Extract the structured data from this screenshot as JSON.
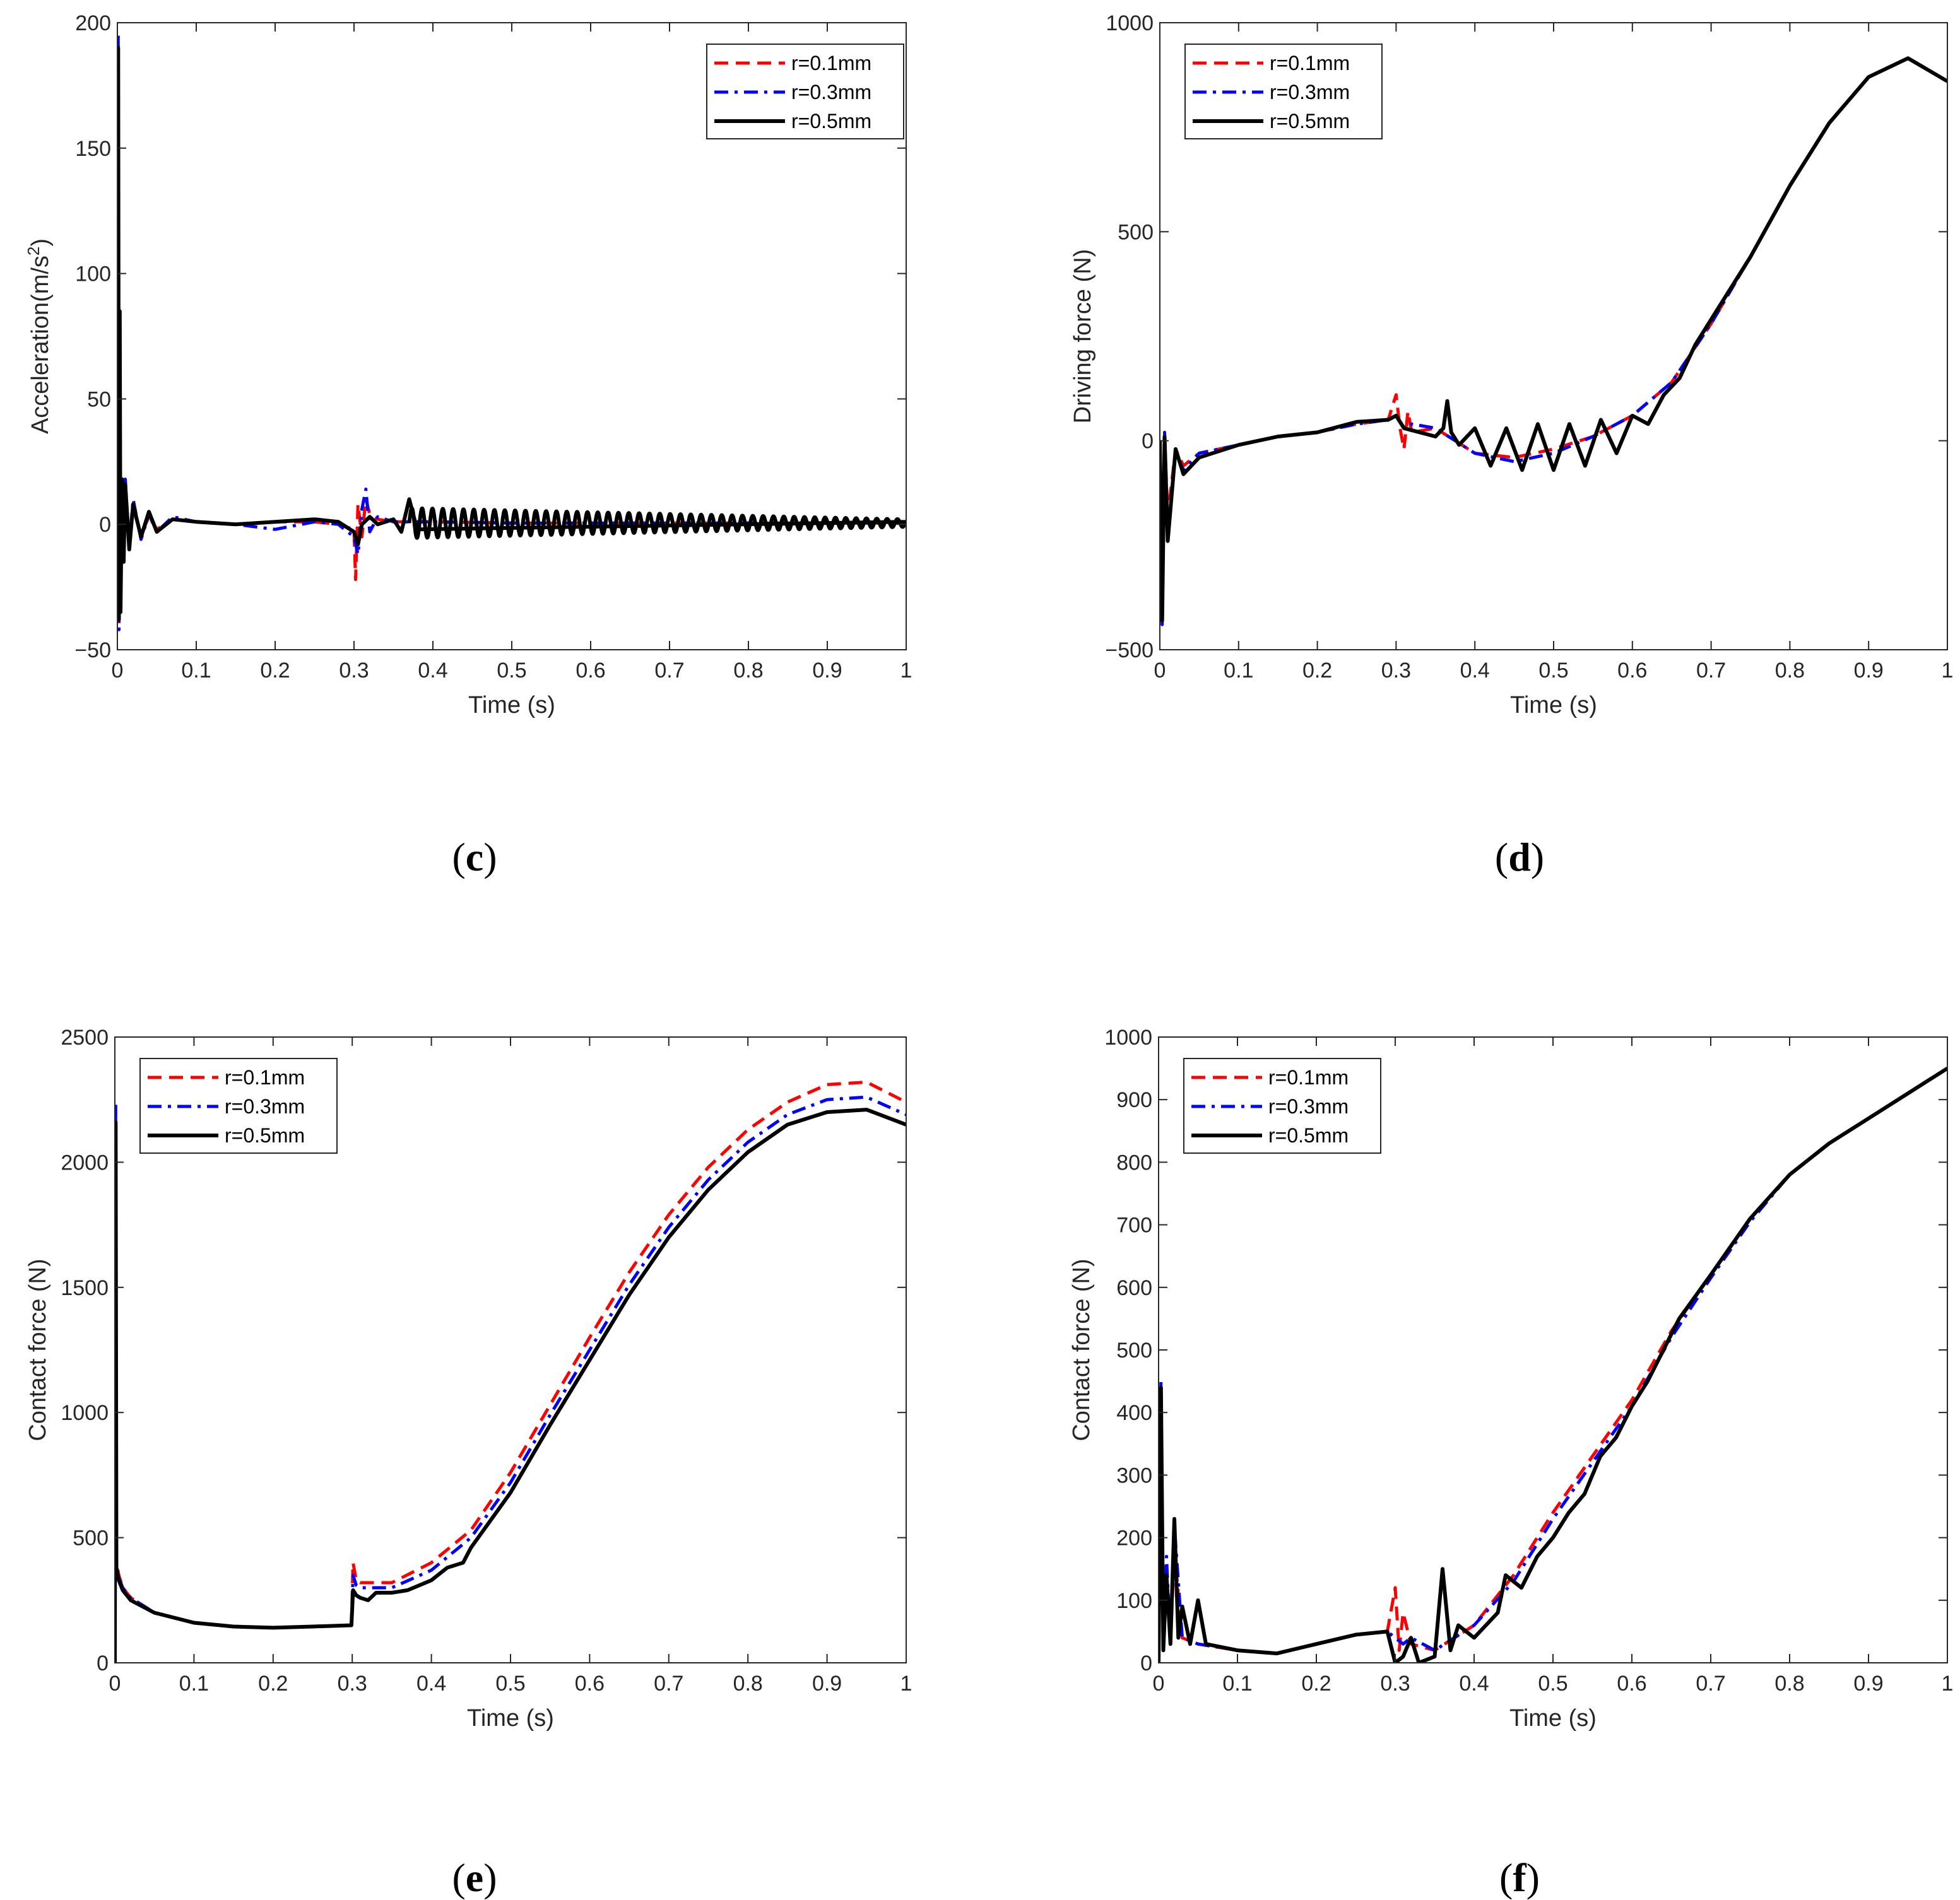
{
  "colors": {
    "r01": "#ff0000",
    "r03": "#0000ff",
    "r05": "#000000",
    "axis": "#262626"
  },
  "legend": {
    "entries": [
      {
        "key": "r01",
        "label": "r=0.1mm",
        "style": "dashed"
      },
      {
        "key": "r03",
        "label": "r=0.3mm",
        "style": "dashdot"
      },
      {
        "key": "r05",
        "label": "r=0.5mm",
        "style": "solid"
      }
    ]
  },
  "chart_data": [
    {
      "id": "c",
      "panel_label": "c",
      "type": "line",
      "xlabel": "Time (s)",
      "ylabel": "Acceleration(m/s",
      "ylabel_sup": "2",
      "ylabel_close": ")",
      "xlim": [
        0,
        1
      ],
      "ylim": [
        -50,
        200
      ],
      "xticks": [
        0,
        0.1,
        0.2,
        0.3,
        0.4,
        0.5,
        0.6,
        0.7,
        0.8,
        0.9,
        1
      ],
      "xtick_labels": [
        "0",
        "0.1",
        "0.2",
        "0.3",
        "0.4",
        "0.5",
        "0.6",
        "0.7",
        "0.8",
        "0.9",
        "1"
      ],
      "yticks": [
        -50,
        0,
        50,
        100,
        150,
        200
      ],
      "ytick_labels": [
        "−50",
        "0",
        "50",
        "100",
        "150",
        "200"
      ],
      "legend_position": "top-right",
      "series": [
        {
          "name": "r=0.1mm",
          "key": "r01",
          "x": [
            0,
            0.001,
            0.002,
            0.003,
            0.004,
            0.006,
            0.008,
            0.01,
            0.015,
            0.02,
            0.03,
            0.04,
            0.05,
            0.07,
            0.1,
            0.15,
            0.2,
            0.25,
            0.28,
            0.3,
            0.302,
            0.305,
            0.31,
            0.315,
            0.32,
            0.33,
            0.35,
            0.4,
            0.5,
            0.6,
            0.7,
            0.8,
            0.9,
            1.0
          ],
          "y": [
            0,
            60,
            -40,
            20,
            -35,
            8,
            -10,
            14,
            -5,
            6,
            -4,
            3,
            -2,
            2,
            1,
            0,
            1,
            1,
            0,
            -2,
            -22,
            8,
            -5,
            10,
            4,
            2,
            1,
            1,
            0.5,
            0.5,
            0.5,
            0.5,
            0.5,
            0.5
          ]
        },
        {
          "name": "r=0.3mm",
          "key": "r03",
          "x": [
            0,
            0.001,
            0.002,
            0.003,
            0.004,
            0.006,
            0.008,
            0.01,
            0.015,
            0.02,
            0.03,
            0.04,
            0.05,
            0.07,
            0.1,
            0.15,
            0.2,
            0.25,
            0.28,
            0.3,
            0.305,
            0.31,
            0.315,
            0.32,
            0.33,
            0.35,
            0.4,
            0.5,
            0.6,
            0.7,
            0.8,
            0.9,
            1.0
          ],
          "y": [
            0,
            196,
            -42,
            40,
            -30,
            15,
            -12,
            18,
            -8,
            10,
            -6,
            4,
            -3,
            3,
            1,
            0,
            -2,
            1,
            0,
            -5,
            -12,
            6,
            14,
            -3,
            3,
            1,
            1,
            0.5,
            0.5,
            0.5,
            0.5,
            0.5,
            0.5
          ]
        },
        {
          "name": "r=0.5mm",
          "key": "r05",
          "x": [
            0,
            0.001,
            0.002,
            0.003,
            0.004,
            0.006,
            0.008,
            0.01,
            0.015,
            0.02,
            0.03,
            0.04,
            0.05,
            0.07,
            0.1,
            0.15,
            0.2,
            0.25,
            0.28,
            0.3,
            0.305,
            0.31,
            0.32,
            0.33,
            0.35,
            0.36,
            0.37,
            0.38,
            1.0
          ],
          "y": [
            0,
            190,
            -38,
            85,
            -35,
            18,
            -15,
            16,
            -10,
            8,
            -5,
            5,
            -3,
            2,
            1,
            0,
            1,
            2,
            1,
            -3,
            -8,
            0,
            3,
            0,
            2,
            -3,
            10,
            -2,
            1
          ]
        },
        {
          "name": "osc",
          "key": "r05_osc",
          "hidden_legend": true,
          "oscillation": {
            "x_start": 0.37,
            "x_end": 1.0,
            "period": 0.0131,
            "amp_start": 6,
            "amp_end": 1.5,
            "offset": 0.5
          }
        }
      ]
    },
    {
      "id": "d",
      "panel_label": "d",
      "type": "line",
      "xlabel": "Time (s)",
      "ylabel": "Driving force (N)",
      "xlim": [
        0,
        1
      ],
      "ylim": [
        -500,
        1000
      ],
      "xticks": [
        0,
        0.1,
        0.2,
        0.3,
        0.4,
        0.5,
        0.6,
        0.7,
        0.8,
        0.9,
        1
      ],
      "xtick_labels": [
        "0",
        "0.1",
        "0.2",
        "0.3",
        "0.4",
        "0.5",
        "0.6",
        "0.7",
        "0.8",
        "0.9",
        "1"
      ],
      "yticks": [
        -500,
        0,
        500,
        1000
      ],
      "ytick_labels": [
        "−500",
        "0",
        "500",
        "1000"
      ],
      "legend_position": "top-left",
      "series": [
        {
          "name": "r=0.1mm",
          "key": "r01",
          "x": [
            0,
            0.003,
            0.006,
            0.01,
            0.02,
            0.03,
            0.05,
            0.1,
            0.15,
            0.2,
            0.25,
            0.29,
            0.3,
            0.305,
            0.31,
            0.315,
            0.32,
            0.35,
            0.4,
            0.45,
            0.5,
            0.55,
            0.6,
            0.65,
            0.7,
            0.75,
            0.8,
            0.85,
            0.9,
            0.95,
            1.0
          ],
          "y": [
            0,
            -420,
            10,
            -180,
            -20,
            -60,
            -30,
            -10,
            10,
            20,
            40,
            50,
            110,
            30,
            -20,
            70,
            20,
            30,
            -30,
            -40,
            -20,
            10,
            60,
            140,
            280,
            440,
            610,
            760,
            870,
            915,
            860
          ]
        },
        {
          "name": "r=0.3mm",
          "key": "r03",
          "x": [
            0,
            0.003,
            0.006,
            0.01,
            0.02,
            0.03,
            0.05,
            0.1,
            0.15,
            0.2,
            0.25,
            0.29,
            0.3,
            0.31,
            0.32,
            0.35,
            0.4,
            0.45,
            0.5,
            0.55,
            0.6,
            0.65,
            0.7,
            0.75,
            0.8,
            0.85,
            0.9,
            0.95,
            1.0
          ],
          "y": [
            0,
            -440,
            20,
            -220,
            -30,
            -70,
            -30,
            -10,
            10,
            20,
            40,
            50,
            60,
            30,
            40,
            30,
            -30,
            -50,
            -30,
            10,
            60,
            140,
            280,
            440,
            610,
            760,
            870,
            915,
            860
          ]
        },
        {
          "name": "r=0.5mm",
          "key": "r05",
          "x": [
            0,
            0.003,
            0.006,
            0.01,
            0.02,
            0.03,
            0.05,
            0.1,
            0.15,
            0.2,
            0.25,
            0.29,
            0.3,
            0.31,
            0.33,
            0.35,
            0.36,
            0.365,
            0.37,
            0.38,
            0.4,
            0.42,
            0.44,
            0.46,
            0.48,
            0.5,
            0.52,
            0.54,
            0.56,
            0.58,
            0.6,
            0.62,
            0.64,
            0.66,
            0.68,
            0.7,
            0.75,
            0.8,
            0.85,
            0.9,
            0.95,
            1.0
          ],
          "y": [
            0,
            -430,
            10,
            -240,
            -20,
            -80,
            -40,
            -10,
            10,
            20,
            45,
            50,
            60,
            30,
            20,
            10,
            30,
            95,
            20,
            -10,
            30,
            -60,
            30,
            -70,
            40,
            -70,
            40,
            -60,
            50,
            -30,
            60,
            40,
            110,
            150,
            230,
            290,
            440,
            610,
            760,
            870,
            915,
            860
          ]
        }
      ]
    },
    {
      "id": "e",
      "panel_label": "e",
      "type": "line",
      "xlabel": "Time (s)",
      "ylabel": "Contact force (N)",
      "xlim": [
        0,
        1
      ],
      "ylim": [
        0,
        2500
      ],
      "xticks": [
        0,
        0.1,
        0.2,
        0.3,
        0.4,
        0.5,
        0.6,
        0.7,
        0.8,
        0.9,
        1
      ],
      "xtick_labels": [
        "0",
        "0.1",
        "0.2",
        "0.3",
        "0.4",
        "0.5",
        "0.6",
        "0.7",
        "0.8",
        "0.9",
        "1"
      ],
      "yticks": [
        0,
        500,
        1000,
        1500,
        2000,
        2500
      ],
      "ytick_labels": [
        "0",
        "500",
        "1000",
        "1500",
        "2000",
        "2500"
      ],
      "legend_position": "top-left",
      "series": [
        {
          "name": "r=0.1mm",
          "key": "r01",
          "x": [
            0,
            0.001,
            0.002,
            0.005,
            0.01,
            0.02,
            0.05,
            0.1,
            0.15,
            0.2,
            0.25,
            0.299,
            0.301,
            0.305,
            0.31,
            0.35,
            0.4,
            0.45,
            0.5,
            0.55,
            0.6,
            0.65,
            0.7,
            0.75,
            0.8,
            0.85,
            0.9,
            0.95,
            1.0
          ],
          "y": [
            0,
            1900,
            400,
            350,
            300,
            260,
            200,
            160,
            145,
            140,
            145,
            150,
            400,
            330,
            320,
            320,
            400,
            530,
            760,
            1030,
            1300,
            1560,
            1790,
            1980,
            2130,
            2240,
            2310,
            2320,
            2240
          ]
        },
        {
          "name": "r=0.3mm",
          "key": "r03",
          "x": [
            0,
            0.001,
            0.002,
            0.005,
            0.01,
            0.02,
            0.05,
            0.1,
            0.15,
            0.2,
            0.25,
            0.299,
            0.301,
            0.305,
            0.31,
            0.35,
            0.4,
            0.45,
            0.5,
            0.55,
            0.6,
            0.65,
            0.7,
            0.75,
            0.8,
            0.85,
            0.9,
            0.95,
            1.0
          ],
          "y": [
            0,
            2240,
            380,
            340,
            300,
            260,
            200,
            160,
            145,
            140,
            145,
            150,
            350,
            310,
            300,
            300,
            370,
            500,
            720,
            990,
            1250,
            1510,
            1740,
            1930,
            2080,
            2190,
            2250,
            2260,
            2190
          ]
        },
        {
          "name": "r=0.5mm",
          "key": "r05",
          "x": [
            0,
            0.001,
            0.002,
            0.005,
            0.01,
            0.02,
            0.05,
            0.1,
            0.15,
            0.2,
            0.25,
            0.299,
            0.301,
            0.305,
            0.31,
            0.32,
            0.33,
            0.35,
            0.37,
            0.4,
            0.42,
            0.44,
            0.45,
            0.5,
            0.55,
            0.6,
            0.65,
            0.7,
            0.75,
            0.8,
            0.85,
            0.9,
            0.95,
            1.0
          ],
          "y": [
            0,
            2160,
            380,
            330,
            290,
            250,
            200,
            160,
            145,
            140,
            145,
            150,
            290,
            270,
            260,
            250,
            280,
            280,
            290,
            330,
            380,
            400,
            460,
            680,
            950,
            1210,
            1470,
            1700,
            1890,
            2040,
            2150,
            2200,
            2210,
            2150
          ]
        }
      ]
    },
    {
      "id": "f",
      "panel_label": "f",
      "type": "line",
      "xlabel": "Time (s)",
      "ylabel": "Contact force (N)",
      "xlim": [
        0,
        1
      ],
      "ylim": [
        0,
        1000
      ],
      "xticks": [
        0,
        0.1,
        0.2,
        0.3,
        0.4,
        0.5,
        0.6,
        0.7,
        0.8,
        0.9,
        1
      ],
      "xtick_labels": [
        "0",
        "0.1",
        "0.2",
        "0.3",
        "0.4",
        "0.5",
        "0.6",
        "0.7",
        "0.8",
        "0.9",
        "1"
      ],
      "yticks": [
        0,
        100,
        200,
        300,
        400,
        500,
        600,
        700,
        800,
        900,
        1000
      ],
      "ytick_labels": [
        "0",
        "100",
        "200",
        "300",
        "400",
        "500",
        "600",
        "700",
        "800",
        "900",
        "1000"
      ],
      "legend_position": "top-left",
      "series": [
        {
          "name": "r=0.1mm",
          "key": "r01",
          "x": [
            0,
            0.003,
            0.006,
            0.01,
            0.015,
            0.02,
            0.03,
            0.05,
            0.1,
            0.15,
            0.2,
            0.25,
            0.29,
            0.3,
            0.305,
            0.31,
            0.32,
            0.35,
            0.4,
            0.45,
            0.5,
            0.55,
            0.6,
            0.65,
            0.7,
            0.75,
            0.8,
            0.85,
            0.9,
            0.95,
            1.0
          ],
          "y": [
            0,
            430,
            20,
            150,
            30,
            180,
            40,
            30,
            20,
            15,
            30,
            45,
            50,
            120,
            20,
            80,
            30,
            20,
            60,
            140,
            240,
            330,
            420,
            530,
            620,
            710,
            780,
            830,
            870,
            910,
            950
          ]
        },
        {
          "name": "r=0.3mm",
          "key": "r03",
          "x": [
            0,
            0.003,
            0.006,
            0.01,
            0.015,
            0.02,
            0.03,
            0.05,
            0.1,
            0.15,
            0.2,
            0.25,
            0.29,
            0.3,
            0.31,
            0.32,
            0.35,
            0.4,
            0.45,
            0.5,
            0.55,
            0.6,
            0.65,
            0.7,
            0.75,
            0.8,
            0.85,
            0.9,
            0.95,
            1.0
          ],
          "y": [
            0,
            450,
            20,
            170,
            30,
            220,
            40,
            30,
            20,
            15,
            30,
            45,
            50,
            40,
            30,
            40,
            20,
            60,
            130,
            230,
            320,
            410,
            520,
            615,
            705,
            780,
            830,
            870,
            910,
            950
          ]
        },
        {
          "name": "r=0.5mm",
          "key": "r05",
          "x": [
            0,
            0.003,
            0.006,
            0.01,
            0.015,
            0.02,
            0.025,
            0.03,
            0.04,
            0.05,
            0.06,
            0.1,
            0.15,
            0.2,
            0.25,
            0.29,
            0.3,
            0.31,
            0.32,
            0.33,
            0.35,
            0.36,
            0.37,
            0.38,
            0.4,
            0.43,
            0.44,
            0.46,
            0.48,
            0.5,
            0.52,
            0.54,
            0.56,
            0.58,
            0.6,
            0.62,
            0.64,
            0.66,
            0.7,
            0.75,
            0.8,
            0.85,
            0.9,
            0.95,
            1.0
          ],
          "y": [
            0,
            440,
            20,
            140,
            30,
            230,
            40,
            90,
            30,
            100,
            30,
            20,
            15,
            30,
            45,
            50,
            0,
            10,
            40,
            0,
            10,
            150,
            20,
            60,
            40,
            80,
            140,
            120,
            170,
            200,
            240,
            270,
            330,
            360,
            410,
            450,
            500,
            550,
            620,
            710,
            780,
            830,
            870,
            910,
            950
          ]
        }
      ]
    }
  ]
}
